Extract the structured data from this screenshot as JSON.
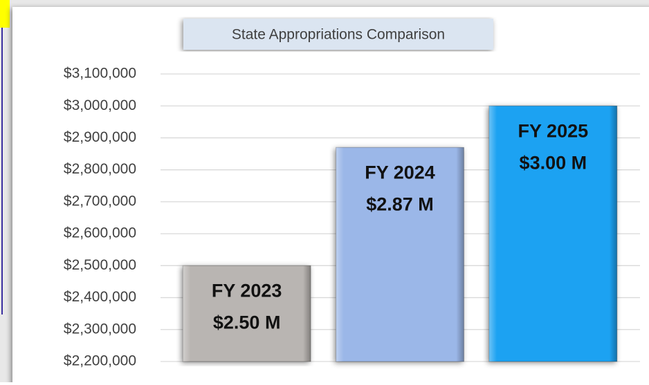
{
  "chart_data": {
    "type": "bar",
    "title": "State Appropriations Comparison",
    "categories": [
      "FY 2023",
      "FY 2024",
      "FY 2025"
    ],
    "values": [
      2500000,
      2870000,
      3000000
    ],
    "value_labels": [
      "$2.50 M",
      "$2.87 M",
      "$3.00 M"
    ],
    "colors": [
      "#b9b5b2",
      "#9bb7e8",
      "#1ea2f2"
    ],
    "ylim": [
      2200000,
      3100000
    ],
    "yticks": [
      {
        "value": 2200000,
        "label": "$2,200,000"
      },
      {
        "value": 2300000,
        "label": "$2,300,000"
      },
      {
        "value": 2400000,
        "label": "$2,400,000"
      },
      {
        "value": 2500000,
        "label": "$2,500,000"
      },
      {
        "value": 2600000,
        "label": "$2,600,000"
      },
      {
        "value": 2700000,
        "label": "$2,700,000"
      },
      {
        "value": 2800000,
        "label": "$2,800,000"
      },
      {
        "value": 2900000,
        "label": "$2,900,000"
      },
      {
        "value": 3000000,
        "label": "$3,000,000"
      },
      {
        "value": 3100000,
        "label": "$3,100,000"
      }
    ],
    "grid": true
  }
}
